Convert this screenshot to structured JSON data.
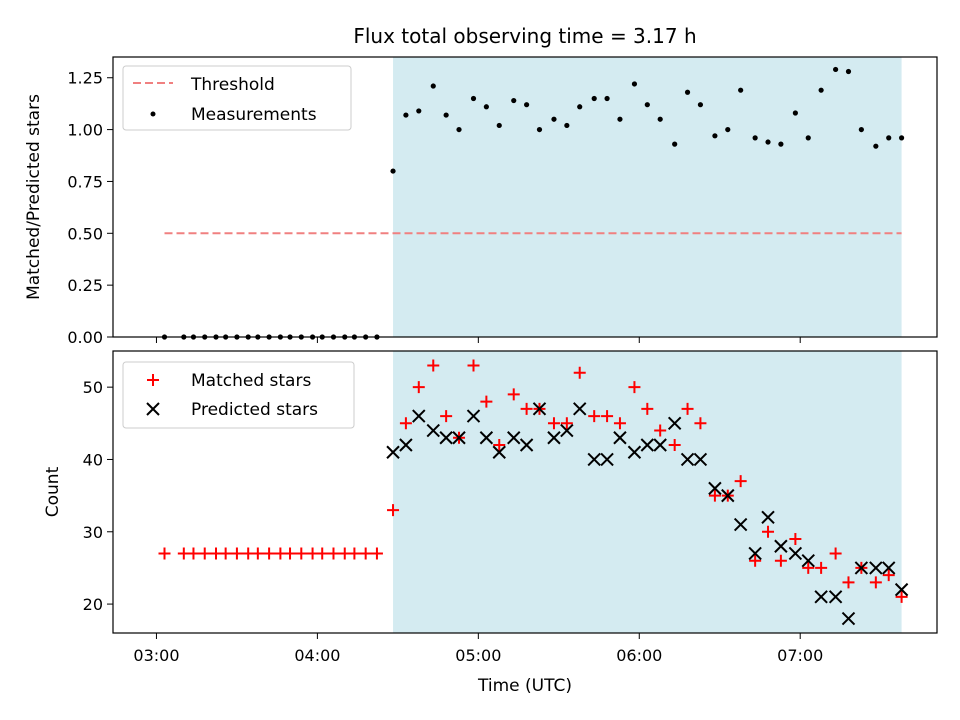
{
  "figure": {
    "title": "Flux total observing time = 3.17 h",
    "xlabel": "Time (UTC)"
  },
  "colors": {
    "highlight": "#d4ebf1",
    "threshold": "#f08080",
    "matched": "#ff0000",
    "predicted": "#000000",
    "measurement": "#000000"
  },
  "chart_data": [
    {
      "type": "scatter",
      "panel": "top",
      "title": "Flux total observing time = 3.17 h",
      "xlabel": "",
      "ylabel": "Matched/Predicted stars",
      "ylim": [
        0,
        1.35
      ],
      "yticks": [
        0.0,
        0.25,
        0.5,
        0.75,
        1.0,
        1.25
      ],
      "ytick_labels": [
        "0.00",
        "0.25",
        "0.50",
        "0.75",
        "1.00",
        "1.25"
      ],
      "xlim_hours": [
        2.73,
        7.85
      ],
      "xticks_hours": [
        3,
        4,
        5,
        6,
        7
      ],
      "legend": {
        "placement": "top-left",
        "entries": [
          "Threshold",
          "Measurements"
        ]
      },
      "highlight_span_hours": [
        4.47,
        7.63
      ],
      "threshold": {
        "name": "Threshold",
        "y": 0.5,
        "x_hours": [
          3.05,
          7.63
        ]
      },
      "measurements": {
        "name": "Measurements",
        "x_hours": [
          3.05,
          3.17,
          3.23,
          3.3,
          3.37,
          3.43,
          3.5,
          3.57,
          3.63,
          3.7,
          3.77,
          3.83,
          3.9,
          3.97,
          4.03,
          4.1,
          4.17,
          4.23,
          4.3,
          4.37,
          4.47,
          4.55,
          4.63,
          4.72,
          4.8,
          4.88,
          4.97,
          5.05,
          5.13,
          5.22,
          5.3,
          5.38,
          5.47,
          5.55,
          5.63,
          5.72,
          5.8,
          5.88,
          5.97,
          6.05,
          6.13,
          6.22,
          6.3,
          6.38,
          6.47,
          6.55,
          6.63,
          6.72,
          6.8,
          6.88,
          6.97,
          7.05,
          7.13,
          7.22,
          7.3,
          7.38,
          7.47,
          7.55,
          7.63
        ],
        "y": [
          0,
          0,
          0,
          0,
          0,
          0,
          0,
          0,
          0,
          0,
          0,
          0,
          0,
          0,
          0,
          0,
          0,
          0,
          0,
          0,
          0.8,
          1.07,
          1.09,
          1.21,
          1.07,
          1.0,
          1.15,
          1.11,
          1.02,
          1.14,
          1.12,
          1.0,
          1.05,
          1.02,
          1.11,
          1.15,
          1.15,
          1.05,
          1.22,
          1.12,
          1.05,
          0.93,
          1.18,
          1.12,
          0.97,
          1.0,
          1.19,
          0.96,
          0.94,
          0.93,
          1.08,
          0.96,
          1.19,
          1.29,
          1.28,
          1.0,
          0.92,
          0.96,
          0.96
        ]
      }
    },
    {
      "type": "scatter",
      "panel": "bottom",
      "xlabel": "Time (UTC)",
      "ylabel": "Count",
      "ylim": [
        16,
        55
      ],
      "yticks": [
        20,
        30,
        40,
        50
      ],
      "ytick_labels": [
        "20",
        "30",
        "40",
        "50"
      ],
      "xlim_hours": [
        2.73,
        7.85
      ],
      "xticks_hours": [
        3,
        4,
        5,
        6,
        7
      ],
      "xtick_labels": [
        "03:00",
        "04:00",
        "05:00",
        "06:00",
        "07:00"
      ],
      "legend": {
        "placement": "top-left",
        "entries": [
          "Matched stars",
          "Predicted stars"
        ]
      },
      "highlight_span_hours": [
        4.47,
        7.63
      ],
      "series": [
        {
          "name": "Matched stars",
          "marker": "plus",
          "x_hours": [
            3.05,
            3.17,
            3.23,
            3.3,
            3.37,
            3.43,
            3.5,
            3.57,
            3.63,
            3.7,
            3.77,
            3.83,
            3.9,
            3.97,
            4.03,
            4.1,
            4.17,
            4.23,
            4.3,
            4.37,
            4.47,
            4.55,
            4.63,
            4.72,
            4.8,
            4.88,
            4.97,
            5.05,
            5.13,
            5.22,
            5.3,
            5.38,
            5.47,
            5.55,
            5.63,
            5.72,
            5.8,
            5.88,
            5.97,
            6.05,
            6.13,
            6.22,
            6.3,
            6.38,
            6.47,
            6.55,
            6.63,
            6.72,
            6.8,
            6.88,
            6.97,
            7.05,
            7.13,
            7.22,
            7.3,
            7.38,
            7.47,
            7.55,
            7.63
          ],
          "values": [
            27,
            27,
            27,
            27,
            27,
            27,
            27,
            27,
            27,
            27,
            27,
            27,
            27,
            27,
            27,
            27,
            27,
            27,
            27,
            27,
            33,
            45,
            50,
            53,
            46,
            43,
            53,
            48,
            42,
            49,
            47,
            47,
            45,
            45,
            52,
            46,
            46,
            45,
            50,
            47,
            44,
            42,
            47,
            45,
            35,
            35,
            37,
            26,
            30,
            26,
            29,
            25,
            25,
            27,
            23,
            25,
            23,
            24,
            21
          ]
        },
        {
          "name": "Predicted stars",
          "marker": "x",
          "x_hours": [
            4.47,
            4.55,
            4.63,
            4.72,
            4.8,
            4.88,
            4.97,
            5.05,
            5.13,
            5.22,
            5.3,
            5.38,
            5.47,
            5.55,
            5.63,
            5.72,
            5.8,
            5.88,
            5.97,
            6.05,
            6.13,
            6.22,
            6.3,
            6.38,
            6.47,
            6.55,
            6.63,
            6.72,
            6.8,
            6.88,
            6.97,
            7.05,
            7.13,
            7.22,
            7.3,
            7.38,
            7.47,
            7.55,
            7.63
          ],
          "values": [
            41,
            42,
            46,
            44,
            43,
            43,
            46,
            43,
            41,
            43,
            42,
            47,
            43,
            44,
            47,
            40,
            40,
            43,
            41,
            42,
            42,
            45,
            40,
            40,
            36,
            35,
            31,
            27,
            32,
            28,
            27,
            26,
            21,
            21,
            18,
            25,
            25,
            25,
            22
          ]
        }
      ]
    }
  ]
}
